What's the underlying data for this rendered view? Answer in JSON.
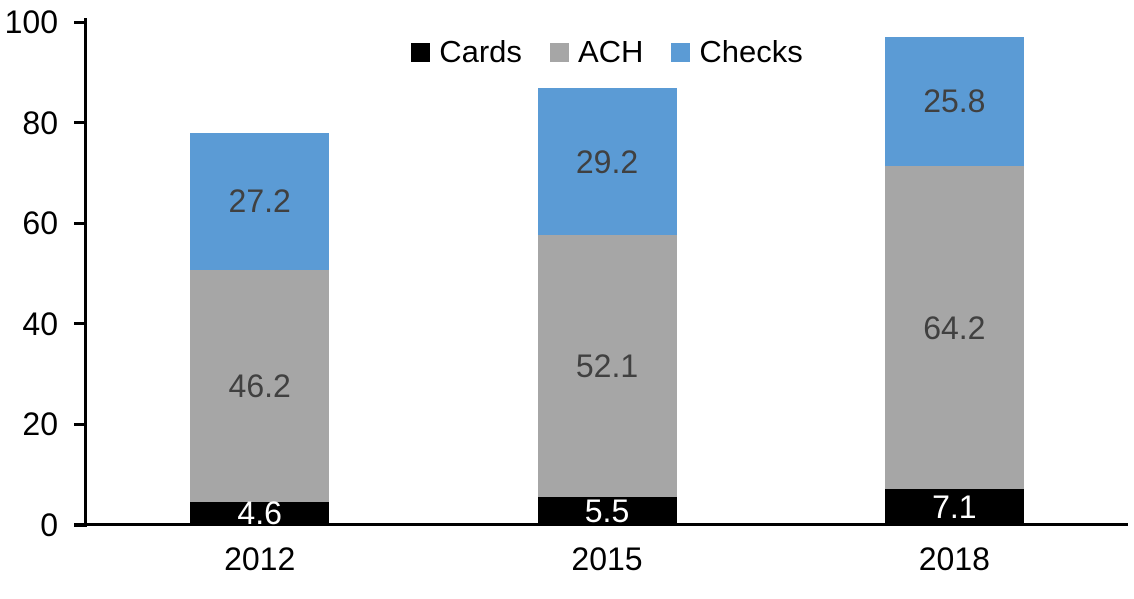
{
  "chart_data": {
    "type": "bar",
    "stacked": true,
    "title": "",
    "xlabel": "",
    "ylabel": "",
    "categories": [
      "2012",
      "2015",
      "2018"
    ],
    "series": [
      {
        "name": "Cards",
        "color": "#000000",
        "label_color": "#FFFFFF",
        "values": [
          4.6,
          5.5,
          7.1
        ]
      },
      {
        "name": "ACH",
        "color": "#A6A6A6",
        "label_color": "#404040",
        "values": [
          46.2,
          52.1,
          64.2
        ]
      },
      {
        "name": "Checks",
        "color": "#5B9BD5",
        "label_color": "#404040",
        "values": [
          27.2,
          29.2,
          25.8
        ]
      }
    ],
    "totals": [
      78.0,
      86.8,
      97.1
    ],
    "ylim": [
      0,
      100
    ],
    "yticks": [
      0,
      20,
      40,
      60,
      80,
      100
    ],
    "grid": false,
    "legend_position": "top-center",
    "axis_color": "#000000",
    "background": "#FFFFFF",
    "data_label_decimals": 1
  }
}
